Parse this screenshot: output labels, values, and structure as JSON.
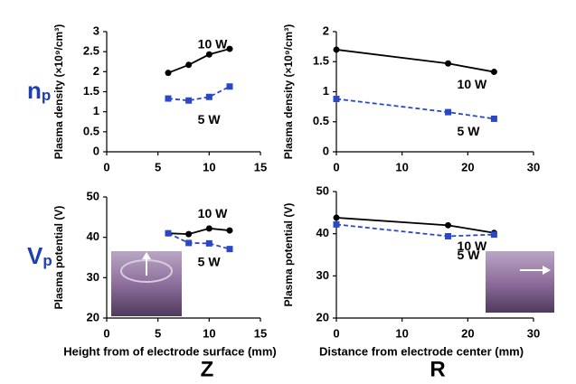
{
  "row_labels": [
    {
      "main": "n",
      "sub": "p"
    },
    {
      "main": "V",
      "sub": "p"
    }
  ],
  "column_labels": [
    "Z",
    "R"
  ],
  "chart_data": [
    {
      "type": "line",
      "ylabel": "Plasma density (×10⁹/cm³)",
      "x": [
        6,
        8,
        10,
        12
      ],
      "xlim": [
        0,
        15
      ],
      "xticks": [
        0,
        5,
        10,
        15
      ],
      "ylim": [
        0,
        3
      ],
      "yticks": [
        0,
        0.5,
        1,
        1.5,
        2,
        2.5,
        3
      ],
      "series": [
        {
          "name": "10 W",
          "color": "#000000",
          "line_style": "solid",
          "marker": "circle",
          "values": [
            1.97,
            2.17,
            2.43,
            2.57
          ]
        },
        {
          "name": "5 W",
          "color": "#2a47c8",
          "line_style": "dashed",
          "marker": "square",
          "values": [
            1.33,
            1.28,
            1.37,
            1.63
          ]
        }
      ]
    },
    {
      "type": "line",
      "ylabel": "Plasma density (×10⁹/cm³)",
      "x": [
        0,
        17,
        24
      ],
      "xlim": [
        0,
        30
      ],
      "xticks": [
        0,
        10,
        20,
        30
      ],
      "ylim": [
        0,
        2
      ],
      "yticks": [
        0,
        0.5,
        1,
        1.5,
        2
      ],
      "series": [
        {
          "name": "10 W",
          "color": "#000000",
          "line_style": "solid",
          "marker": "circle",
          "values": [
            1.7,
            1.47,
            1.33
          ]
        },
        {
          "name": "5 W",
          "color": "#2a47c8",
          "line_style": "dashed",
          "marker": "square",
          "values": [
            0.88,
            0.66,
            0.55
          ]
        }
      ]
    },
    {
      "type": "line",
      "ylabel": "Plasma potential (V)",
      "xlabel": "Height from of electrode surface (mm)",
      "x": [
        6,
        8,
        10,
        12
      ],
      "xlim": [
        0,
        15
      ],
      "xticks": [
        0,
        5,
        10,
        15
      ],
      "ylim": [
        20,
        50
      ],
      "yticks": [
        20,
        30,
        40,
        50
      ],
      "series": [
        {
          "name": "10 W",
          "color": "#000000",
          "line_style": "solid",
          "marker": "circle",
          "values": [
            41,
            40.8,
            42.2,
            41.7
          ]
        },
        {
          "name": "5 W",
          "color": "#2a47c8",
          "line_style": "dashed",
          "marker": "square",
          "values": [
            41,
            38.6,
            38.5,
            37.1
          ]
        }
      ]
    },
    {
      "type": "line",
      "ylabel": "Plasma potential (V)",
      "xlabel": "Distance from electrode center (mm)",
      "x": [
        0,
        17,
        24
      ],
      "xlim": [
        0,
        30
      ],
      "xticks": [
        0,
        10,
        20,
        30
      ],
      "ylim": [
        20,
        50
      ],
      "yticks": [
        20,
        30,
        40,
        50
      ],
      "series": [
        {
          "name": "10 W",
          "color": "#000000",
          "line_style": "solid",
          "marker": "circle",
          "values": [
            43.8,
            42,
            40.2
          ]
        },
        {
          "name": "5 W",
          "color": "#2a47c8",
          "line_style": "dashed",
          "marker": "square",
          "values": [
            42.2,
            39.4,
            39.8
          ]
        }
      ]
    }
  ]
}
